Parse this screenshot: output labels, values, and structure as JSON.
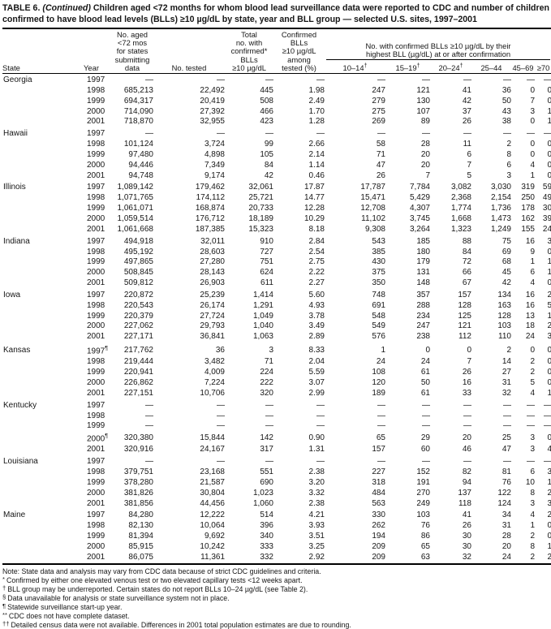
{
  "title": {
    "prefix": "TABLE 6.",
    "continued": " (Continued) ",
    "rest": "Children aged <72 months for whom blood lead surveillance data were reported to CDC and number of children confirmed to have blood lead levels (BLLs) ≥10 µg/dL by state, year and BLL group — selected U.S. sites, 1997–2001"
  },
  "table": {
    "columns": {
      "state": "State",
      "year": "Year",
      "population": "No. aged\n<72 mos\nfor states\nsubmitting\ndata",
      "tested": "No. tested",
      "confirmed": "Total\nno. with\nconfirmed*\nBLLs\n≥10 µg/dL",
      "pct": "Confirmed\nBLLs\n≥10 µg/dL\namong\ntested (%)"
    },
    "group_header": {
      "line1": "No. with confirmed BLLs ≥10 µg/dL by their",
      "line2": "highest BLL (µg/dL) at or after confirmation"
    },
    "bll_columns": [
      {
        "range": "10–14",
        "sup": "†"
      },
      {
        "range": "15–19",
        "sup": "†"
      },
      {
        "range": "20–24",
        "sup": "†"
      },
      {
        "range": "25–44",
        "sup": ""
      },
      {
        "range": "45–69",
        "sup": ""
      },
      {
        "range": "≥70",
        "sup": ""
      }
    ],
    "rows": [
      {
        "state": "Georgia",
        "year": "1997",
        "note": "",
        "values": [
          "—",
          "—",
          "—",
          "—",
          "—",
          "—",
          "—",
          "—",
          "—",
          "—"
        ]
      },
      {
        "state": "",
        "year": "1998",
        "note": "",
        "values": [
          "685,213",
          "22,492",
          "445",
          "1.98",
          "247",
          "121",
          "41",
          "36",
          "0",
          "0"
        ]
      },
      {
        "state": "",
        "year": "1999",
        "note": "",
        "values": [
          "694,317",
          "20,419",
          "508",
          "2.49",
          "279",
          "130",
          "42",
          "50",
          "7",
          "0"
        ]
      },
      {
        "state": "",
        "year": "2000",
        "note": "",
        "values": [
          "714,090",
          "27,392",
          "466",
          "1.70",
          "275",
          "107",
          "37",
          "43",
          "3",
          "1"
        ]
      },
      {
        "state": "",
        "year": "2001",
        "note": "",
        "values": [
          "718,870",
          "32,955",
          "423",
          "1.28",
          "269",
          "89",
          "26",
          "38",
          "0",
          "1"
        ]
      },
      {
        "state": "Hawaii",
        "year": "1997",
        "note": "",
        "values": [
          "—",
          "—",
          "—",
          "—",
          "—",
          "—",
          "—",
          "—",
          "—",
          "—"
        ]
      },
      {
        "state": "",
        "year": "1998",
        "note": "",
        "values": [
          "101,124",
          "3,724",
          "99",
          "2.66",
          "58",
          "28",
          "11",
          "2",
          "0",
          "0"
        ]
      },
      {
        "state": "",
        "year": "1999",
        "note": "",
        "values": [
          "97,480",
          "4,898",
          "105",
          "2.14",
          "71",
          "20",
          "6",
          "8",
          "0",
          "0"
        ]
      },
      {
        "state": "",
        "year": "2000",
        "note": "",
        "values": [
          "94,446",
          "7,349",
          "84",
          "1.14",
          "47",
          "20",
          "7",
          "6",
          "4",
          "0"
        ]
      },
      {
        "state": "",
        "year": "2001",
        "note": "",
        "values": [
          "94,748",
          "9,174",
          "42",
          "0.46",
          "26",
          "7",
          "5",
          "3",
          "1",
          "0"
        ]
      },
      {
        "state": "Illinois",
        "year": "1997",
        "note": "",
        "values": [
          "1,089,142",
          "179,462",
          "32,061",
          "17.87",
          "17,787",
          "7,784",
          "3,082",
          "3,030",
          "319",
          "59"
        ]
      },
      {
        "state": "",
        "year": "1998",
        "note": "",
        "values": [
          "1,071,765",
          "174,112",
          "25,721",
          "14.77",
          "15,471",
          "5,429",
          "2,368",
          "2,154",
          "250",
          "49"
        ]
      },
      {
        "state": "",
        "year": "1999",
        "note": "",
        "values": [
          "1,061,071",
          "168,874",
          "20,733",
          "12.28",
          "12,708",
          "4,307",
          "1,774",
          "1,736",
          "178",
          "30"
        ]
      },
      {
        "state": "",
        "year": "2000",
        "note": "",
        "values": [
          "1,059,514",
          "176,712",
          "18,189",
          "10.29",
          "11,102",
          "3,745",
          "1,668",
          "1,473",
          "162",
          "39"
        ]
      },
      {
        "state": "",
        "year": "2001",
        "note": "",
        "values": [
          "1,061,668",
          "187,385",
          "15,323",
          "8.18",
          "9,308",
          "3,264",
          "1,323",
          "1,249",
          "155",
          "24"
        ]
      },
      {
        "state": "Indiana",
        "year": "1997",
        "note": "",
        "values": [
          "494,918",
          "32,011",
          "910",
          "2.84",
          "543",
          "185",
          "88",
          "75",
          "16",
          "3"
        ]
      },
      {
        "state": "",
        "year": "1998",
        "note": "",
        "values": [
          "495,192",
          "28,603",
          "727",
          "2.54",
          "385",
          "180",
          "84",
          "69",
          "9",
          "0"
        ]
      },
      {
        "state": "",
        "year": "1999",
        "note": "",
        "values": [
          "497,865",
          "27,280",
          "751",
          "2.75",
          "430",
          "179",
          "72",
          "68",
          "1",
          "1"
        ]
      },
      {
        "state": "",
        "year": "2000",
        "note": "",
        "values": [
          "508,845",
          "28,143",
          "624",
          "2.22",
          "375",
          "131",
          "66",
          "45",
          "6",
          "1"
        ]
      },
      {
        "state": "",
        "year": "2001",
        "note": "",
        "values": [
          "509,812",
          "26,903",
          "611",
          "2.27",
          "350",
          "148",
          "67",
          "42",
          "4",
          "0"
        ]
      },
      {
        "state": "Iowa",
        "year": "1997",
        "note": "",
        "values": [
          "220,872",
          "25,239",
          "1,414",
          "5.60",
          "748",
          "357",
          "157",
          "134",
          "16",
          "2"
        ]
      },
      {
        "state": "",
        "year": "1998",
        "note": "",
        "values": [
          "220,543",
          "26,174",
          "1,291",
          "4.93",
          "691",
          "288",
          "128",
          "163",
          "16",
          "5"
        ]
      },
      {
        "state": "",
        "year": "1999",
        "note": "",
        "values": [
          "220,379",
          "27,724",
          "1,049",
          "3.78",
          "548",
          "234",
          "125",
          "128",
          "13",
          "1"
        ]
      },
      {
        "state": "",
        "year": "2000",
        "note": "",
        "values": [
          "227,062",
          "29,793",
          "1,040",
          "3.49",
          "549",
          "247",
          "121",
          "103",
          "18",
          "2"
        ]
      },
      {
        "state": "",
        "year": "2001",
        "note": "",
        "values": [
          "227,171",
          "36,841",
          "1,063",
          "2.89",
          "576",
          "238",
          "112",
          "110",
          "24",
          "3"
        ]
      },
      {
        "state": "Kansas",
        "year": "1997",
        "note": "¶",
        "values": [
          "217,762",
          "36",
          "3",
          "8.33",
          "1",
          "0",
          "0",
          "2",
          "0",
          "0"
        ]
      },
      {
        "state": "",
        "year": "1998",
        "note": "",
        "values": [
          "219,444",
          "3,482",
          "71",
          "2.04",
          "24",
          "24",
          "7",
          "14",
          "2",
          "0"
        ]
      },
      {
        "state": "",
        "year": "1999",
        "note": "",
        "values": [
          "220,941",
          "4,009",
          "224",
          "5.59",
          "108",
          "61",
          "26",
          "27",
          "2",
          "0"
        ]
      },
      {
        "state": "",
        "year": "2000",
        "note": "",
        "values": [
          "226,862",
          "7,224",
          "222",
          "3.07",
          "120",
          "50",
          "16",
          "31",
          "5",
          "0"
        ]
      },
      {
        "state": "",
        "year": "2001",
        "note": "",
        "values": [
          "227,151",
          "10,706",
          "320",
          "2.99",
          "189",
          "61",
          "33",
          "32",
          "4",
          "1"
        ]
      },
      {
        "state": "Kentucky",
        "year": "1997",
        "note": "",
        "values": [
          "—",
          "—",
          "—",
          "—",
          "—",
          "—",
          "—",
          "—",
          "—",
          "—"
        ]
      },
      {
        "state": "",
        "year": "1998",
        "note": "",
        "values": [
          "—",
          "—",
          "—",
          "—",
          "—",
          "—",
          "—",
          "—",
          "—",
          "—"
        ]
      },
      {
        "state": "",
        "year": "1999",
        "note": "",
        "values": [
          "—",
          "—",
          "—",
          "—",
          "—",
          "—",
          "—",
          "—",
          "—",
          "—"
        ]
      },
      {
        "state": "",
        "year": "2000",
        "note": "¶",
        "values": [
          "320,380",
          "15,844",
          "142",
          "0.90",
          "65",
          "29",
          "20",
          "25",
          "3",
          "0"
        ]
      },
      {
        "state": "",
        "year": "2001",
        "note": "",
        "values": [
          "320,916",
          "24,167",
          "317",
          "1.31",
          "157",
          "60",
          "46",
          "47",
          "3",
          "4"
        ]
      },
      {
        "state": "Louisiana",
        "year": "1997",
        "note": "",
        "values": [
          "—",
          "—",
          "—",
          "—",
          "—",
          "—",
          "—",
          "—",
          "—",
          "—"
        ]
      },
      {
        "state": "",
        "year": "1998",
        "note": "",
        "values": [
          "379,751",
          "23,168",
          "551",
          "2.38",
          "227",
          "152",
          "82",
          "81",
          "6",
          "3"
        ]
      },
      {
        "state": "",
        "year": "1999",
        "note": "",
        "values": [
          "378,280",
          "21,587",
          "690",
          "3.20",
          "318",
          "191",
          "94",
          "76",
          "10",
          "1"
        ]
      },
      {
        "state": "",
        "year": "2000",
        "note": "",
        "values": [
          "381,826",
          "30,804",
          "1,023",
          "3.32",
          "484",
          "270",
          "137",
          "122",
          "8",
          "2"
        ]
      },
      {
        "state": "",
        "year": "2001",
        "note": "",
        "values": [
          "381,856",
          "44,456",
          "1,060",
          "2.38",
          "563",
          "249",
          "118",
          "124",
          "3",
          "3"
        ]
      },
      {
        "state": "Maine",
        "year": "1997",
        "note": "",
        "values": [
          "84,280",
          "12,222",
          "514",
          "4.21",
          "330",
          "103",
          "41",
          "34",
          "4",
          "2"
        ]
      },
      {
        "state": "",
        "year": "1998",
        "note": "",
        "values": [
          "82,130",
          "10,064",
          "396",
          "3.93",
          "262",
          "76",
          "26",
          "31",
          "1",
          "0"
        ]
      },
      {
        "state": "",
        "year": "1999",
        "note": "",
        "values": [
          "81,394",
          "9,692",
          "340",
          "3.51",
          "194",
          "86",
          "30",
          "28",
          "2",
          "0"
        ]
      },
      {
        "state": "",
        "year": "2000",
        "note": "",
        "values": [
          "85,915",
          "10,242",
          "333",
          "3.25",
          "209",
          "65",
          "30",
          "20",
          "8",
          "1"
        ]
      },
      {
        "state": "",
        "year": "2001",
        "note": "",
        "values": [
          "86,075",
          "11,361",
          "332",
          "2.92",
          "209",
          "63",
          "32",
          "24",
          "2",
          "2"
        ]
      }
    ]
  },
  "footnotes": {
    "note": "Note: State data and analysis may vary from CDC data because of strict CDC guidelines and criteria.",
    "items": [
      {
        "marker": "*",
        "text": "Confirmed by either one elevated venous test or two elevated capillary tests <12 weeks apart."
      },
      {
        "marker": "†",
        "text": "BLL group may be underreported. Certain states do not report BLLs 10–24 µg/dL (see Table 2)."
      },
      {
        "marker": "§",
        "text": "Data unavailable for analysis or state surveillance system not in place."
      },
      {
        "marker": "¶",
        "text": "Statewide surveillance start-up year."
      },
      {
        "marker": "**",
        "text": "CDC does not have complete dataset."
      },
      {
        "marker": "††",
        "text": "Detailed census data were not available. Differences in 2001 total population estimates are due to rounding."
      }
    ]
  }
}
